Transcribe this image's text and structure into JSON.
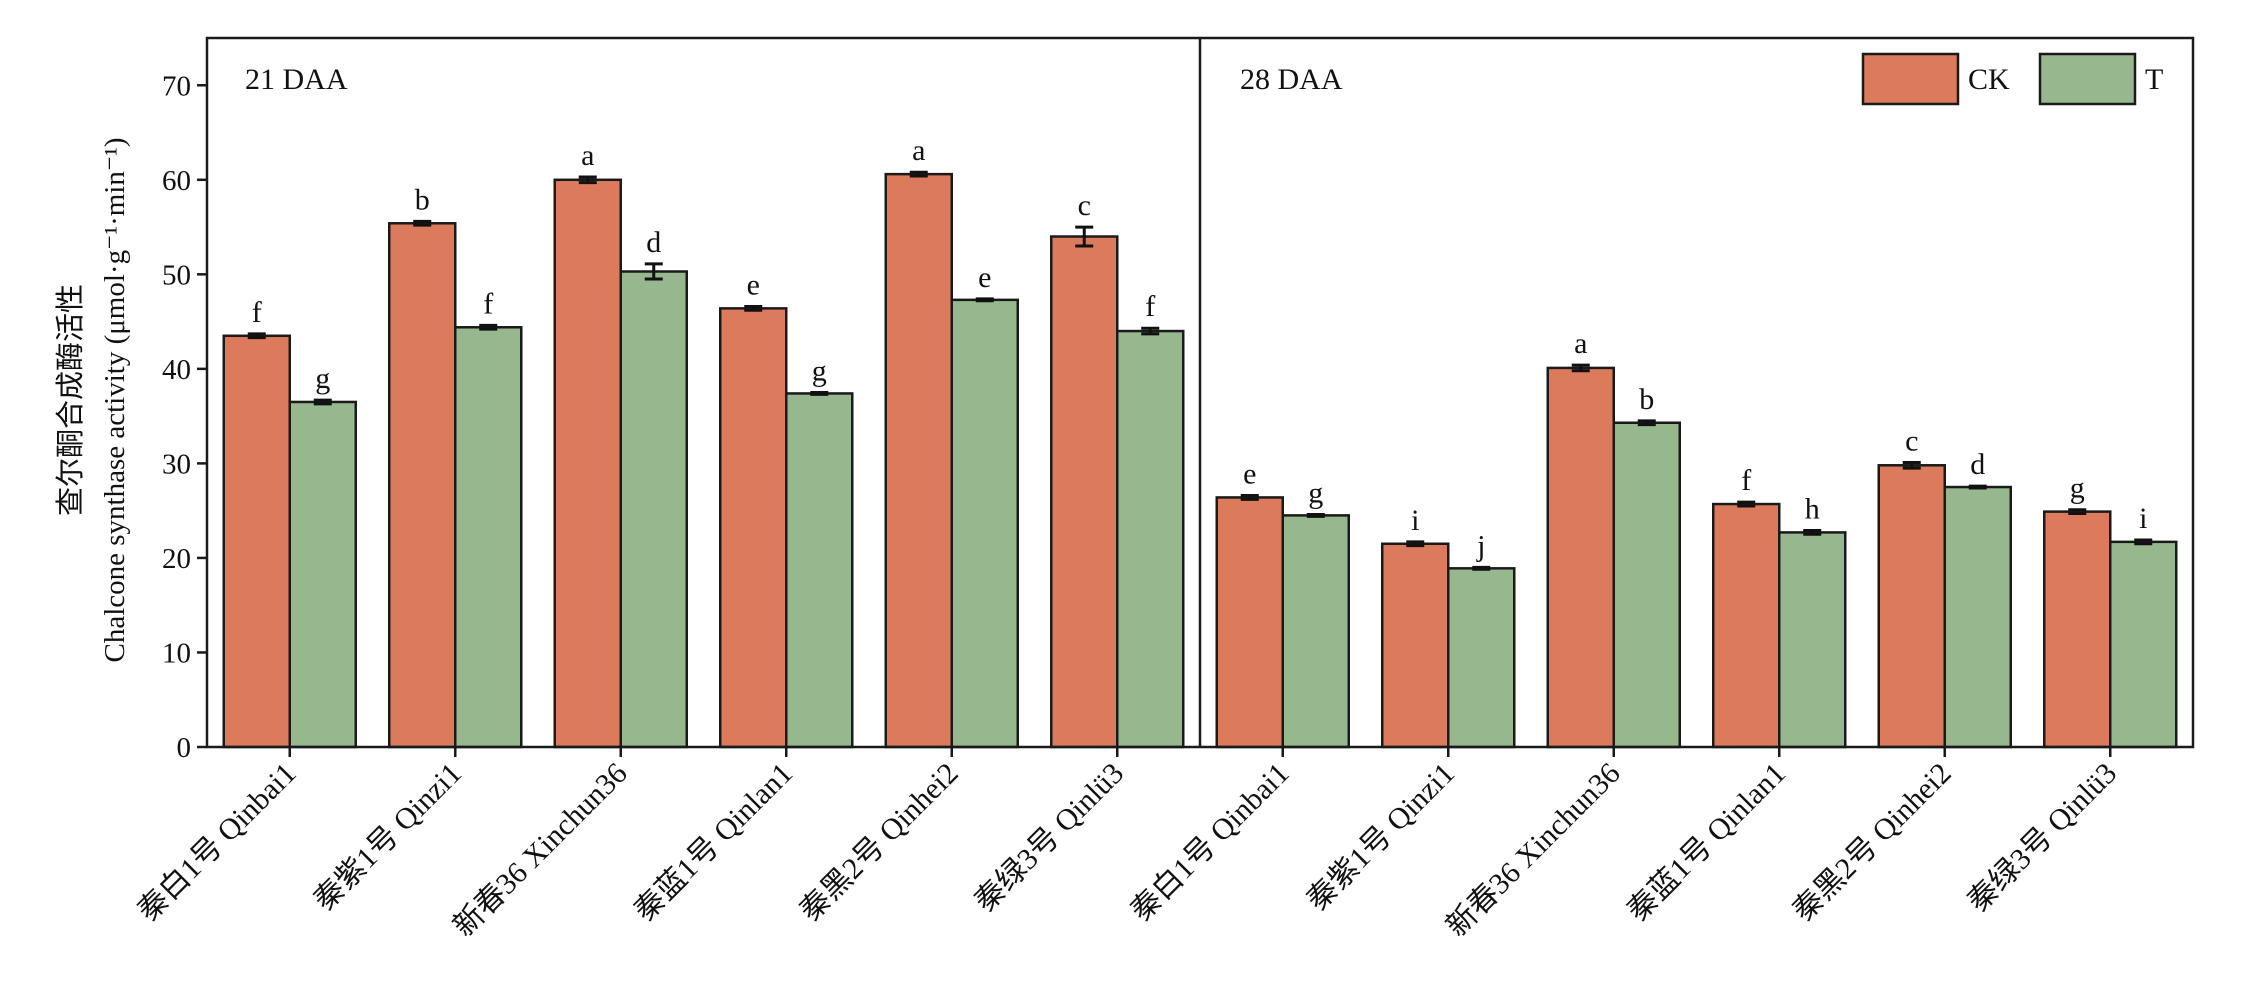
{
  "chart_data": {
    "type": "bar",
    "ylabel_cn": "查尔酮合成酶活性",
    "ylabel_en": "Chalcone synthase activity (μmol·g⁻¹·min⁻¹)",
    "ylim": [
      0,
      75
    ],
    "yticks": [
      0,
      10,
      20,
      30,
      40,
      50,
      60,
      70
    ],
    "legend": {
      "placement": "top-right",
      "entries": [
        "CK",
        "T"
      ]
    },
    "colors": {
      "CK": "#DB7B5C",
      "T": "#97B88F",
      "edge": "#1a1a1a"
    },
    "panels": [
      {
        "label": "21 DAA",
        "categories": [
          "秦白1号 Qinbai1",
          "秦紫1号 Qinzi1",
          "新春36 Xinchun36",
          "秦蓝1号 Qinlan1",
          "秦黑2号 Qinhei2",
          "秦绿3号 Qinlü3"
        ],
        "series": [
          {
            "name": "CK",
            "values": [
              43.5,
              55.4,
              60.0,
              46.4,
              60.6,
              54.0
            ],
            "errors": [
              0.2,
              0.2,
              0.3,
              0.2,
              0.2,
              1.0
            ],
            "letters": [
              "f",
              "b",
              "a",
              "e",
              "a",
              "c"
            ]
          },
          {
            "name": "T",
            "values": [
              36.5,
              44.4,
              50.3,
              37.4,
              47.3,
              44.0
            ],
            "errors": [
              0.2,
              0.2,
              0.8,
              0.1,
              0.1,
              0.3
            ],
            "letters": [
              "g",
              "f",
              "d",
              "g",
              "e",
              "f"
            ]
          }
        ]
      },
      {
        "label": "28 DAA",
        "categories": [
          "秦白1号 Qinbai1",
          "秦紫1号 Qinzi1",
          "新春36 Xinchun36",
          "秦蓝1号 Qinlan1",
          "秦黑2号 Qinhei2",
          "秦绿3号 Qinlü3"
        ],
        "series": [
          {
            "name": "CK",
            "values": [
              26.4,
              21.5,
              40.1,
              25.7,
              29.8,
              24.9
            ],
            "errors": [
              0.2,
              0.2,
              0.3,
              0.2,
              0.3,
              0.2
            ],
            "letters": [
              "e",
              "i",
              "a",
              "f",
              "c",
              "g"
            ]
          },
          {
            "name": "T",
            "values": [
              24.5,
              18.9,
              34.3,
              22.7,
              27.5,
              21.7
            ],
            "errors": [
              0.1,
              0.1,
              0.2,
              0.2,
              0.1,
              0.2
            ],
            "letters": [
              "g",
              "j",
              "b",
              "h",
              "d",
              "i"
            ]
          }
        ]
      }
    ]
  }
}
